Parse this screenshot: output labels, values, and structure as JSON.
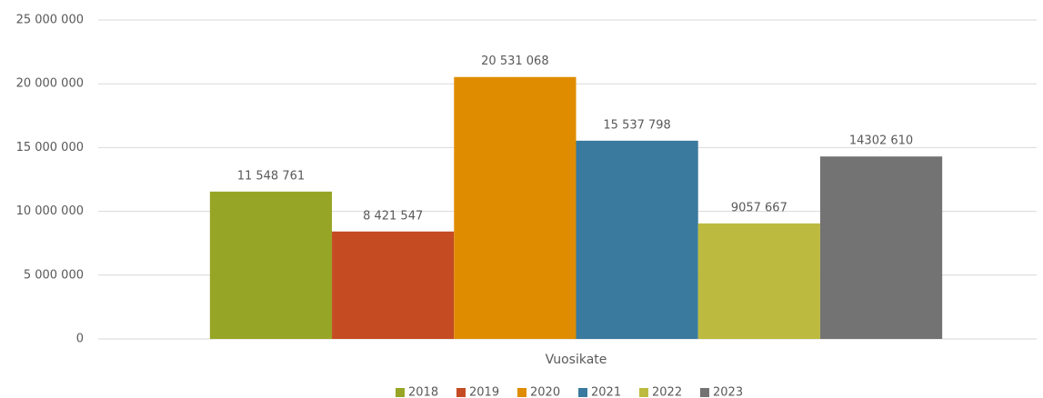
{
  "chart_data": {
    "type": "bar",
    "categories": [
      "Vuosikate"
    ],
    "series": [
      {
        "name": "2018",
        "color": "#97a526",
        "values": [
          11548761
        ],
        "value_labels": [
          "11 548 761"
        ]
      },
      {
        "name": "2019",
        "color": "#c54b23",
        "values": [
          8421547
        ],
        "value_labels": [
          "8 421 547"
        ]
      },
      {
        "name": "2020",
        "color": "#e08c00",
        "values": [
          20531068
        ],
        "value_labels": [
          "20 531 068"
        ]
      },
      {
        "name": "2021",
        "color": "#3a7a9e",
        "values": [
          15537798
        ],
        "value_labels": [
          "15 537 798"
        ]
      },
      {
        "name": "2022",
        "color": "#bdbb3f",
        "values": [
          9057667
        ],
        "value_labels": [
          "9057 667"
        ]
      },
      {
        "name": "2023",
        "color": "#737373",
        "values": [
          14302610
        ],
        "value_labels": [
          "14302 610"
        ]
      }
    ],
    "ylim": [
      0,
      25000000
    ],
    "yticks": [
      0,
      {
        "value": 5000000,
        "label": "5 000 000"
      },
      {
        "value": 10000000,
        "label": "10 000 000"
      },
      {
        "value": 15000000,
        "label": "15 000 000"
      },
      {
        "value": 20000000,
        "label": "20 000 000"
      },
      {
        "value": 25000000,
        "label": "25 000 000"
      }
    ],
    "grid": true,
    "legend": "bottom"
  }
}
